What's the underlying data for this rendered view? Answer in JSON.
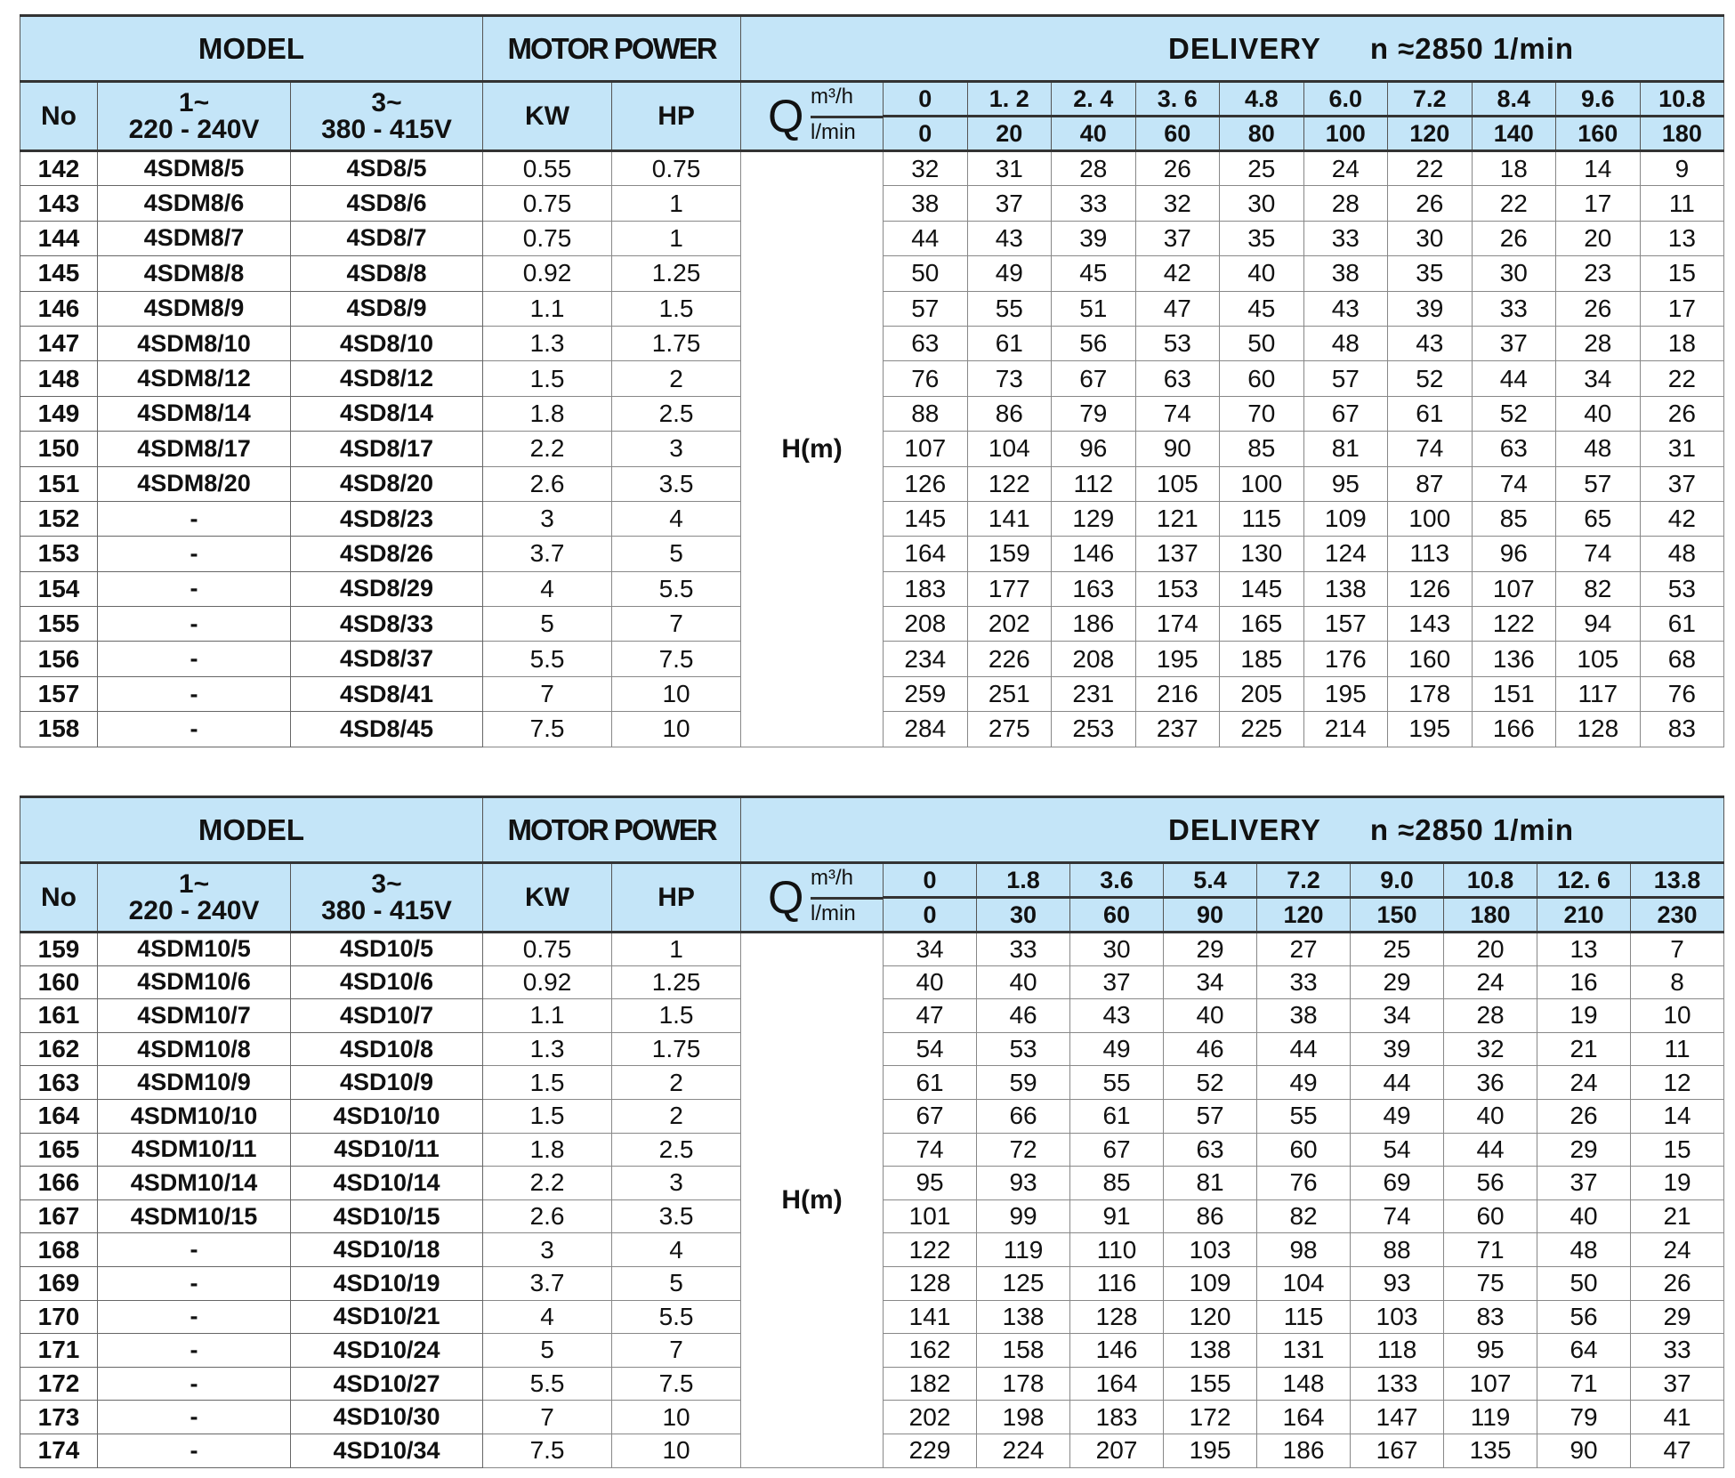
{
  "tables": [
    {
      "header": {
        "model": "MODEL",
        "motor_power": "MOTOR POWER",
        "delivery": "DELIVERY",
        "speed": "n ≈2850  1/min",
        "no": "No",
        "single_phase": "1~",
        "single_phase_voltage": "220 - 240V",
        "three_phase": "3~",
        "three_phase_voltage": "380 - 415V",
        "kw": "KW",
        "hp": "HP",
        "q": "Q",
        "q_unit_m3h": "m³/h",
        "q_unit_lmin": "l/min",
        "head": "H(m)"
      },
      "q_m3h": [
        "0",
        "1. 2",
        "2. 4",
        "3. 6",
        "4.8",
        "6.0",
        "7.2",
        "8.4",
        "9.6",
        "10.8"
      ],
      "q_lmin": [
        "0",
        "20",
        "40",
        "60",
        "80",
        "100",
        "120",
        "140",
        "160",
        "180"
      ],
      "rows": [
        {
          "no": "142",
          "m1": "4SDM8/5",
          "m3": "4SD8/5",
          "kw": "0.55",
          "hp": "0.75",
          "h": [
            "32",
            "31",
            "28",
            "26",
            "25",
            "24",
            "22",
            "18",
            "14",
            "9"
          ]
        },
        {
          "no": "143",
          "m1": "4SDM8/6",
          "m3": "4SD8/6",
          "kw": "0.75",
          "hp": "1",
          "h": [
            "38",
            "37",
            "33",
            "32",
            "30",
            "28",
            "26",
            "22",
            "17",
            "11"
          ]
        },
        {
          "no": "144",
          "m1": "4SDM8/7",
          "m3": "4SD8/7",
          "kw": "0.75",
          "hp": "1",
          "h": [
            "44",
            "43",
            "39",
            "37",
            "35",
            "33",
            "30",
            "26",
            "20",
            "13"
          ]
        },
        {
          "no": "145",
          "m1": "4SDM8/8",
          "m3": "4SD8/8",
          "kw": "0.92",
          "hp": "1.25",
          "h": [
            "50",
            "49",
            "45",
            "42",
            "40",
            "38",
            "35",
            "30",
            "23",
            "15"
          ]
        },
        {
          "no": "146",
          "m1": "4SDM8/9",
          "m3": "4SD8/9",
          "kw": "1.1",
          "hp": "1.5",
          "h": [
            "57",
            "55",
            "51",
            "47",
            "45",
            "43",
            "39",
            "33",
            "26",
            "17"
          ]
        },
        {
          "no": "147",
          "m1": "4SDM8/10",
          "m3": "4SD8/10",
          "kw": "1.3",
          "hp": "1.75",
          "h": [
            "63",
            "61",
            "56",
            "53",
            "50",
            "48",
            "43",
            "37",
            "28",
            "18"
          ]
        },
        {
          "no": "148",
          "m1": "4SDM8/12",
          "m3": "4SD8/12",
          "kw": "1.5",
          "hp": "2",
          "h": [
            "76",
            "73",
            "67",
            "63",
            "60",
            "57",
            "52",
            "44",
            "34",
            "22"
          ]
        },
        {
          "no": "149",
          "m1": "4SDM8/14",
          "m3": "4SD8/14",
          "kw": "1.8",
          "hp": "2.5",
          "h": [
            "88",
            "86",
            "79",
            "74",
            "70",
            "67",
            "61",
            "52",
            "40",
            "26"
          ]
        },
        {
          "no": "150",
          "m1": "4SDM8/17",
          "m3": "4SD8/17",
          "kw": "2.2",
          "hp": "3",
          "h": [
            "107",
            "104",
            "96",
            "90",
            "85",
            "81",
            "74",
            "63",
            "48",
            "31"
          ]
        },
        {
          "no": "151",
          "m1": "4SDM8/20",
          "m3": "4SD8/20",
          "kw": "2.6",
          "hp": "3.5",
          "h": [
            "126",
            "122",
            "112",
            "105",
            "100",
            "95",
            "87",
            "74",
            "57",
            "37"
          ]
        },
        {
          "no": "152",
          "m1": "-",
          "m3": "4SD8/23",
          "kw": "3",
          "hp": "4",
          "h": [
            "145",
            "141",
            "129",
            "121",
            "115",
            "109",
            "100",
            "85",
            "65",
            "42"
          ]
        },
        {
          "no": "153",
          "m1": "-",
          "m3": "4SD8/26",
          "kw": "3.7",
          "hp": "5",
          "h": [
            "164",
            "159",
            "146",
            "137",
            "130",
            "124",
            "113",
            "96",
            "74",
            "48"
          ]
        },
        {
          "no": "154",
          "m1": "-",
          "m3": "4SD8/29",
          "kw": "4",
          "hp": "5.5",
          "h": [
            "183",
            "177",
            "163",
            "153",
            "145",
            "138",
            "126",
            "107",
            "82",
            "53"
          ]
        },
        {
          "no": "155",
          "m1": "-",
          "m3": "4SD8/33",
          "kw": "5",
          "hp": "7",
          "h": [
            "208",
            "202",
            "186",
            "174",
            "165",
            "157",
            "143",
            "122",
            "94",
            "61"
          ]
        },
        {
          "no": "156",
          "m1": "-",
          "m3": "4SD8/37",
          "kw": "5.5",
          "hp": "7.5",
          "h": [
            "234",
            "226",
            "208",
            "195",
            "185",
            "176",
            "160",
            "136",
            "105",
            "68"
          ]
        },
        {
          "no": "157",
          "m1": "-",
          "m3": "4SD8/41",
          "kw": "7",
          "hp": "10",
          "h": [
            "259",
            "251",
            "231",
            "216",
            "205",
            "195",
            "178",
            "151",
            "117",
            "76"
          ]
        },
        {
          "no": "158",
          "m1": "-",
          "m3": "4SD8/45",
          "kw": "7.5",
          "hp": "10",
          "h": [
            "284",
            "275",
            "253",
            "237",
            "225",
            "214",
            "195",
            "166",
            "128",
            "83"
          ]
        }
      ]
    },
    {
      "header": {
        "model": "MODEL",
        "motor_power": "MOTOR POWER",
        "delivery": "DELIVERY",
        "speed": "n ≈2850  1/min",
        "no": "No",
        "single_phase": "1~",
        "single_phase_voltage": "220 - 240V",
        "three_phase": "3~",
        "three_phase_voltage": "380 - 415V",
        "kw": "KW",
        "hp": "HP",
        "q": "Q",
        "q_unit_m3h": "m³/h",
        "q_unit_lmin": "l/min",
        "head": "H(m)"
      },
      "q_m3h": [
        "0",
        "1.8",
        "3.6",
        "5.4",
        "7.2",
        "9.0",
        "10.8",
        "12. 6",
        "13.8"
      ],
      "q_lmin": [
        "0",
        "30",
        "60",
        "90",
        "120",
        "150",
        "180",
        "210",
        "230"
      ],
      "rows": [
        {
          "no": "159",
          "m1": "4SDM10/5",
          "m3": "4SD10/5",
          "kw": "0.75",
          "hp": "1",
          "h": [
            "34",
            "33",
            "30",
            "29",
            "27",
            "25",
            "20",
            "13",
            "7"
          ]
        },
        {
          "no": "160",
          "m1": "4SDM10/6",
          "m3": "4SD10/6",
          "kw": "0.92",
          "hp": "1.25",
          "h": [
            "40",
            "40",
            "37",
            "34",
            "33",
            "29",
            "24",
            "16",
            "8"
          ]
        },
        {
          "no": "161",
          "m1": "4SDM10/7",
          "m3": "4SD10/7",
          "kw": "1.1",
          "hp": "1.5",
          "h": [
            "47",
            "46",
            "43",
            "40",
            "38",
            "34",
            "28",
            "19",
            "10"
          ]
        },
        {
          "no": "162",
          "m1": "4SDM10/8",
          "m3": "4SD10/8",
          "kw": "1.3",
          "hp": "1.75",
          "h": [
            "54",
            "53",
            "49",
            "46",
            "44",
            "39",
            "32",
            "21",
            "11"
          ]
        },
        {
          "no": "163",
          "m1": "4SDM10/9",
          "m3": "4SD10/9",
          "kw": "1.5",
          "hp": "2",
          "h": [
            "61",
            "59",
            "55",
            "52",
            "49",
            "44",
            "36",
            "24",
            "12"
          ]
        },
        {
          "no": "164",
          "m1": "4SDM10/10",
          "m3": "4SD10/10",
          "kw": "1.5",
          "hp": "2",
          "h": [
            "67",
            "66",
            "61",
            "57",
            "55",
            "49",
            "40",
            "26",
            "14"
          ]
        },
        {
          "no": "165",
          "m1": "4SDM10/11",
          "m3": "4SD10/11",
          "kw": "1.8",
          "hp": "2.5",
          "h": [
            "74",
            "72",
            "67",
            "63",
            "60",
            "54",
            "44",
            "29",
            "15"
          ]
        },
        {
          "no": "166",
          "m1": "4SDM10/14",
          "m3": "4SD10/14",
          "kw": "2.2",
          "hp": "3",
          "h": [
            "95",
            "93",
            "85",
            "81",
            "76",
            "69",
            "56",
            "37",
            "19"
          ]
        },
        {
          "no": "167",
          "m1": "4SDM10/15",
          "m3": "4SD10/15",
          "kw": "2.6",
          "hp": "3.5",
          "h": [
            "101",
            "99",
            "91",
            "86",
            "82",
            "74",
            "60",
            "40",
            "21"
          ]
        },
        {
          "no": "168",
          "m1": "-",
          "m3": "4SD10/18",
          "kw": "3",
          "hp": "4",
          "h": [
            "122",
            "119",
            "110",
            "103",
            "98",
            "88",
            "71",
            "48",
            "24"
          ]
        },
        {
          "no": "169",
          "m1": "-",
          "m3": "4SD10/19",
          "kw": "3.7",
          "hp": "5",
          "h": [
            "128",
            "125",
            "116",
            "109",
            "104",
            "93",
            "75",
            "50",
            "26"
          ]
        },
        {
          "no": "170",
          "m1": "-",
          "m3": "4SD10/21",
          "kw": "4",
          "hp": "5.5",
          "h": [
            "141",
            "138",
            "128",
            "120",
            "115",
            "103",
            "83",
            "56",
            "29"
          ]
        },
        {
          "no": "171",
          "m1": "-",
          "m3": "4SD10/24",
          "kw": "5",
          "hp": "7",
          "h": [
            "162",
            "158",
            "146",
            "138",
            "131",
            "118",
            "95",
            "64",
            "33"
          ]
        },
        {
          "no": "172",
          "m1": "-",
          "m3": "4SD10/27",
          "kw": "5.5",
          "hp": "7.5",
          "h": [
            "182",
            "178",
            "164",
            "155",
            "148",
            "133",
            "107",
            "71",
            "37"
          ]
        },
        {
          "no": "173",
          "m1": "-",
          "m3": "4SD10/30",
          "kw": "7",
          "hp": "10",
          "h": [
            "202",
            "198",
            "183",
            "172",
            "164",
            "147",
            "119",
            "79",
            "41"
          ]
        },
        {
          "no": "174",
          "m1": "-",
          "m3": "4SD10/34",
          "kw": "7.5",
          "hp": "10",
          "h": [
            "229",
            "224",
            "207",
            "195",
            "186",
            "167",
            "135",
            "90",
            "47"
          ]
        }
      ]
    }
  ],
  "colors": {
    "header_bg": "#c4e5f8",
    "border": "#333333"
  }
}
